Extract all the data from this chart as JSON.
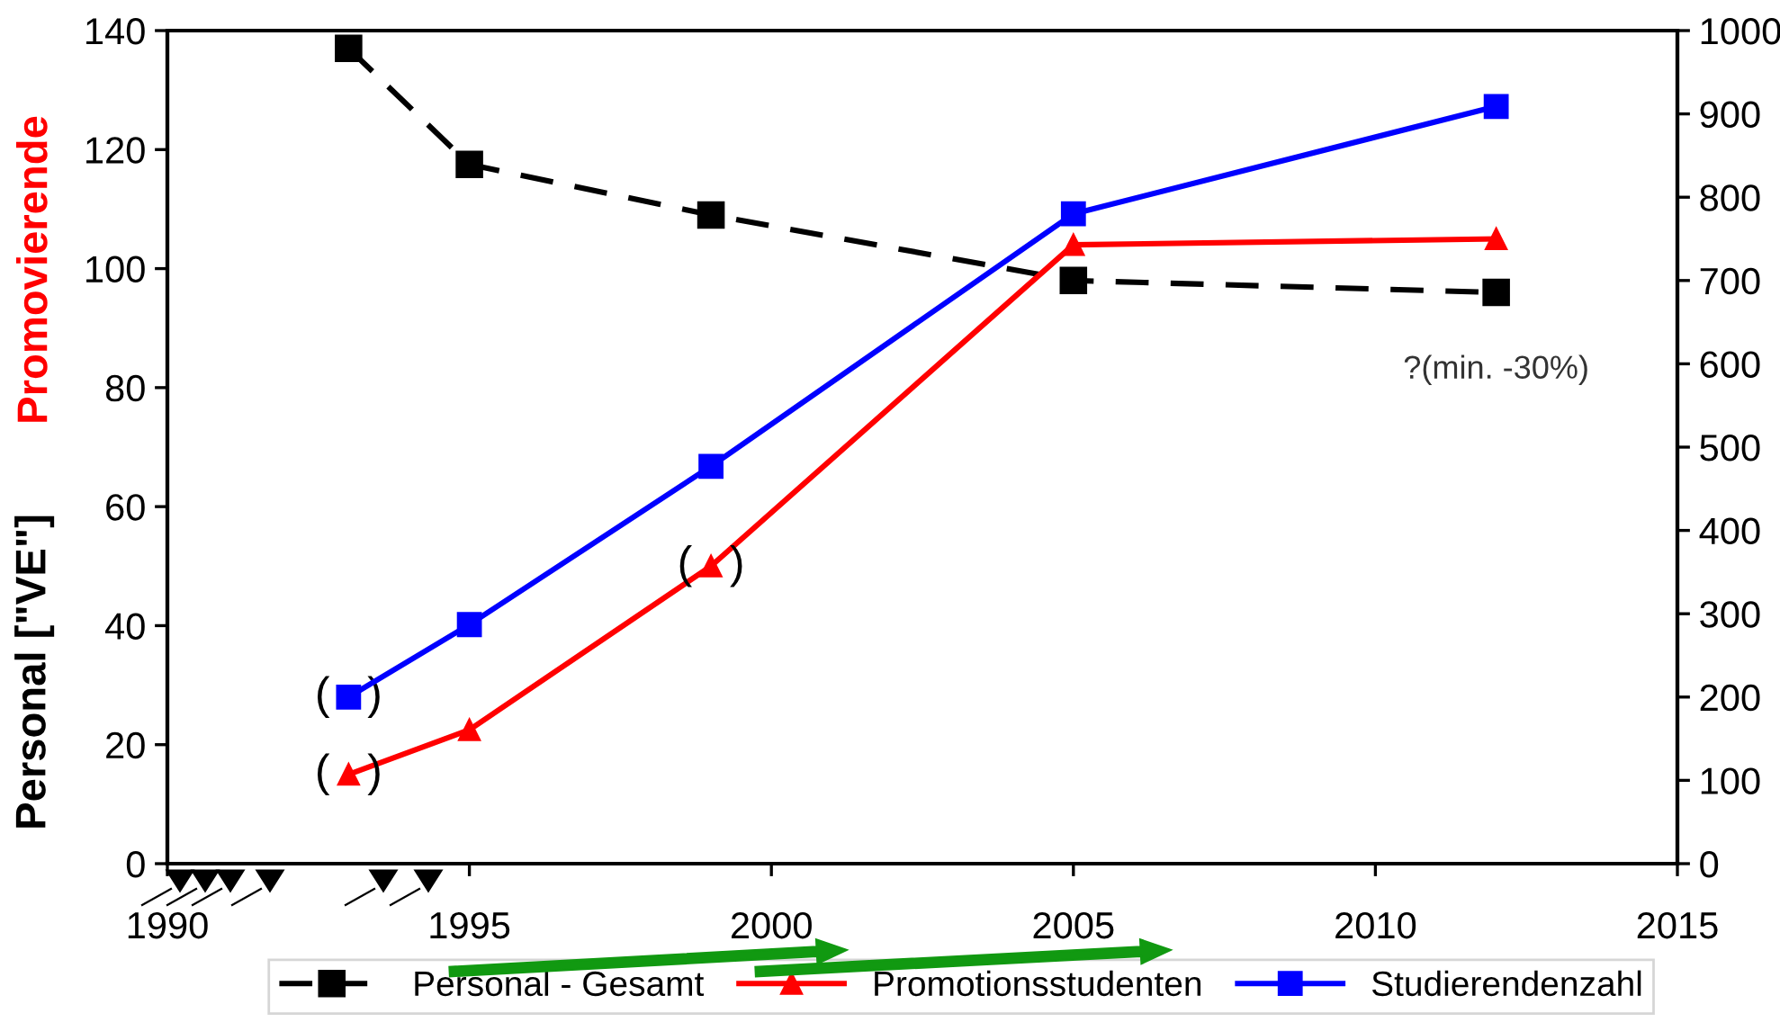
{
  "chart_data": {
    "type": "line",
    "x": [
      1993,
      1995,
      1999,
      2005,
      2012
    ],
    "series": [
      {
        "name": "Personal - Gesamt",
        "color": "#000000",
        "values": [
          137,
          117.5,
          109,
          98,
          96
        ],
        "marker": "square",
        "line_style": "dashed"
      },
      {
        "name": "Promotionsstudenten",
        "color": "#ff0000",
        "values": [
          15,
          22.5,
          50,
          104,
          105
        ],
        "marker": "triangle",
        "line_style": "solid"
      },
      {
        "name": "Studierendenzahl",
        "color": "#0000ff",
        "values": [
          200,
          287,
          477,
          780,
          909
        ],
        "marker": "square",
        "line_style": "solid",
        "axis": "y2"
      }
    ],
    "ylabel": "Personal [\"VE\"]",
    "xlim": [
      1990,
      2015
    ],
    "xticks": [
      1990,
      1995,
      2000,
      2005,
      2010,
      2015
    ],
    "ylim": [
      0,
      140
    ],
    "yticks": [
      0,
      20,
      40,
      60,
      80,
      100,
      120,
      140
    ],
    "y2lim": [
      0,
      1000
    ],
    "y2ticks": [
      0,
      100,
      200,
      300,
      400,
      500,
      600,
      700,
      800,
      900,
      1000
    ],
    "annotations": [
      "Promovierende",
      {
        "text": "?(min. -30%)",
        "x": 2012,
        "y": 96
      },
      {
        "text": "(   )",
        "x": 1993,
        "y": 28
      },
      {
        "text": "(   )",
        "x": 1993,
        "y": 15
      },
      {
        "text": "(   )",
        "x": 1999,
        "y": 50
      }
    ],
    "grid": false,
    "legend": "bottom"
  }
}
